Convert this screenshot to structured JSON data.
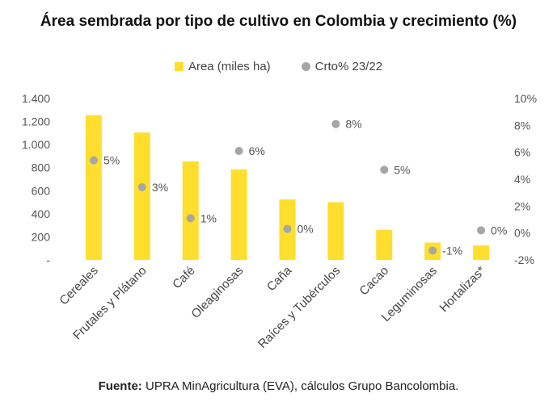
{
  "chart_data": {
    "type": "bar",
    "title": "Área sembrada por tipo de cultivo en Colombia y crecimiento (%)",
    "categories": [
      "Cereales",
      "Frutales y Plátano",
      "Café",
      "Oleaginosas",
      "Caña",
      "Raíces y Tubérculos",
      "Cacao",
      "Leguminosas",
      "Hortalizas*"
    ],
    "series": [
      {
        "name": "Area (miles ha)",
        "type": "bar",
        "axis": "left",
        "values": [
          1255,
          1105,
          855,
          785,
          525,
          500,
          260,
          150,
          125
        ]
      },
      {
        "name": "Crto% 23/22",
        "type": "scatter",
        "axis": "right",
        "values": [
          5.4,
          3.4,
          1.1,
          6.1,
          0.3,
          8.1,
          4.7,
          -1.3,
          0.2
        ],
        "labels": [
          "5%",
          "3%",
          "1%",
          "6%",
          "0%",
          "8%",
          "5%",
          "-1%",
          "0%"
        ]
      }
    ],
    "y_left": {
      "ylim": [
        0,
        1400
      ],
      "ticks": [
        0,
        200,
        400,
        600,
        800,
        1000,
        1200,
        1400
      ],
      "tick_labels": [
        "-",
        "200",
        "400",
        "600",
        "800",
        "1.000",
        "1.200",
        "1.400"
      ]
    },
    "y_right": {
      "ylim": [
        -2,
        10
      ],
      "ticks": [
        -2,
        0,
        2,
        4,
        6,
        8,
        10
      ],
      "tick_labels": [
        "-2%",
        "0%",
        "2%",
        "4%",
        "6%",
        "8%",
        "10%"
      ]
    },
    "legend": "top",
    "grid": false,
    "colors": {
      "bar": "#ffde2e",
      "dot": "#a6a6a6"
    }
  },
  "source": {
    "label": "Fuente:",
    "text": " UPRA MinAgricultura (EVA), cálculos Grupo Bancolombia."
  }
}
